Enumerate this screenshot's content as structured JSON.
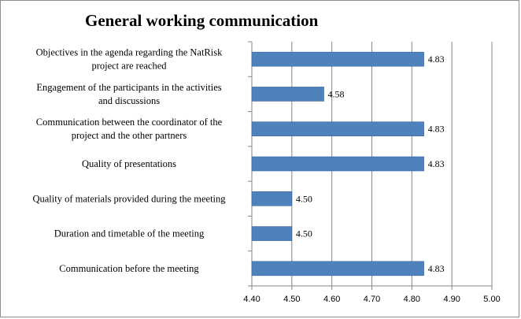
{
  "chart_data": {
    "type": "bar",
    "orientation": "horizontal",
    "title": "General working communication",
    "categories": [
      "Objectives in the agenda regarding the NatRisk project are reached",
      "Engagement of the participants in the activities and discussions",
      "Communication between the coordinator of the project and the other partners",
      "Quality of presentations",
      "Quality of materials provided during the meeting",
      "Duration and timetable of the meeting",
      "Communication before the meeting"
    ],
    "category_lines": [
      [
        "Objectives in the agenda regarding the NatRisk",
        "project are reached"
      ],
      [
        "Engagement of the participants in the activities",
        "and discussions"
      ],
      [
        "Communication between the coordinator of the",
        "project and the other partners"
      ],
      [
        "Quality of presentations"
      ],
      [
        "Quality of materials provided during the meeting"
      ],
      [
        "Duration and timetable of the meeting"
      ],
      [
        "Communication before the meeting"
      ]
    ],
    "values": [
      4.83,
      4.58,
      4.83,
      4.83,
      4.5,
      4.5,
      4.83
    ],
    "data_labels": [
      "4.83",
      "4.58",
      "4.83",
      "4.83",
      "4.50",
      "4.50",
      "4.83"
    ],
    "xlim": [
      4.4,
      5.0
    ],
    "xticks": [
      "4.40",
      "4.50",
      "4.60",
      "4.70",
      "4.80",
      "4.90",
      "5.00"
    ],
    "xlabel": "",
    "ylabel": "",
    "grid": "vertical",
    "legend": "none",
    "colors": {
      "bar": "#4f81bd",
      "bar_border": "#3c6596",
      "grid": "#868686",
      "axis": "#868686"
    }
  }
}
